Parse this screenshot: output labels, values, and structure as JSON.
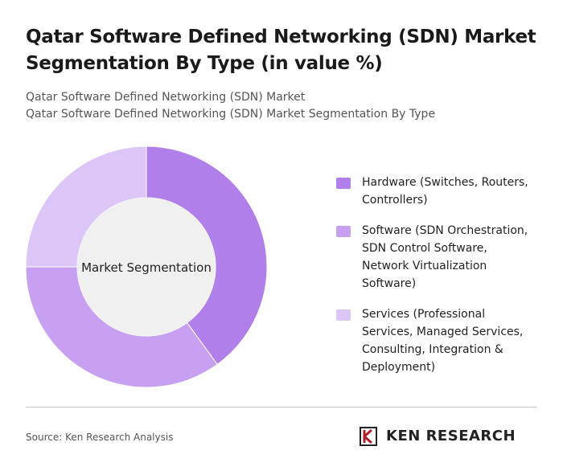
{
  "chart_data": {
    "type": "donut",
    "title": "Qatar Software Defined Networking (SDN) Market Segmentation By Type (in value %)",
    "subtitle": [
      "Qatar Software Defined Networking (SDN) Market",
      "Qatar Software Defined Networking (SDN) Market Segmentation By Type"
    ],
    "center_label": "Market Segmentation",
    "categories": [
      "Hardware (Switches, Routers, Controllers)",
      "Software (SDN Orchestration, SDN Control Software, Network Virtualization Software)",
      "Services (Professional Services, Managed Services, Consulting, Integration & Deployment)"
    ],
    "values": [
      40,
      35,
      25
    ],
    "colors": [
      "#b07fe9",
      "#c7a0f1",
      "#dcc5f7"
    ]
  },
  "footer": {
    "source": "Source: Ken Research Analysis",
    "brand": "KEN RESEARCH"
  }
}
